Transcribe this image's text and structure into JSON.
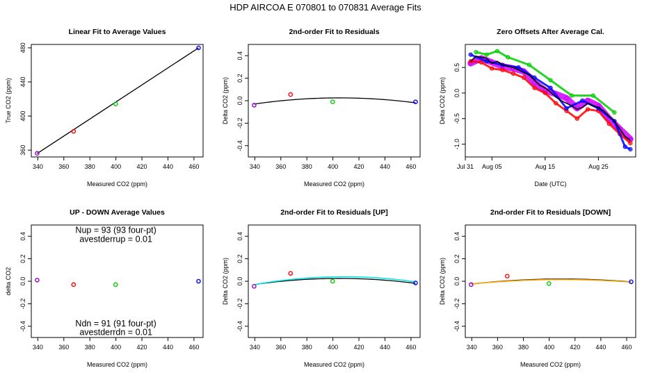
{
  "figure": {
    "title": "HDP    AIRCOA E    070801 to 070831    Average Fits"
  },
  "colors": {
    "red": "#ff0000",
    "green": "#00cc00",
    "blue": "#0000ff",
    "purple": "#9900cc",
    "magenta": "#cc00ff",
    "black": "#000000",
    "cyan": "#00e5e5",
    "orange": "#ffa500"
  },
  "chart_data": [
    {
      "id": "p1",
      "type": "scatter",
      "title": "Linear Fit to Average Values",
      "xlabel": "Measured CO2 (ppm)",
      "ylabel": "True CO2 (ppm)",
      "xlim": [
        335,
        467
      ],
      "ylim": [
        352,
        484
      ],
      "xticks": [
        340,
        360,
        380,
        400,
        420,
        440,
        460
      ],
      "yticks": [
        360,
        400,
        440,
        480
      ],
      "points": [
        {
          "x": 339.5,
          "y": 356.2,
          "color": "purple"
        },
        {
          "x": 367.5,
          "y": 382.0,
          "color": "red"
        },
        {
          "x": 399.8,
          "y": 414.2,
          "color": "green"
        },
        {
          "x": 463.5,
          "y": 480.0,
          "color": "blue"
        }
      ],
      "lines": [
        {
          "kind": "linear",
          "x0": 339.5,
          "y0": 356.0,
          "x1": 463.5,
          "y1": 480.0,
          "color": "black"
        }
      ]
    },
    {
      "id": "p2",
      "type": "scatter",
      "title": "2nd-order Fit to Residuals",
      "xlabel": "Measured CO2 (ppm)",
      "ylabel": "Delta CO2 (ppm)",
      "xlim": [
        335,
        467
      ],
      "ylim": [
        -0.5,
        0.5
      ],
      "xticks": [
        340,
        360,
        380,
        400,
        420,
        440,
        460
      ],
      "yticks": [
        -0.4,
        -0.2,
        0.0,
        0.2,
        0.4
      ],
      "ytick_labels": [
        "-0.4",
        "-0.2",
        "0.0",
        "0.2",
        "0.4"
      ],
      "points": [
        {
          "x": 339.5,
          "y": -0.04,
          "color": "purple"
        },
        {
          "x": 367.5,
          "y": 0.055,
          "color": "red"
        },
        {
          "x": 399.8,
          "y": -0.01,
          "color": "green"
        },
        {
          "x": 463.5,
          "y": -0.01,
          "color": "blue"
        }
      ],
      "lines": [
        {
          "kind": "quadratic",
          "vertex_x": 405,
          "vertex_y": 0.025,
          "x0": 339.5,
          "y0": -0.03,
          "x1": 463.5,
          "color": "black"
        }
      ]
    },
    {
      "id": "p3",
      "type": "scatter",
      "title": "Zero Offsets After Average Cal.",
      "xlabel": "Date (UTC)",
      "ylabel": "Delta CO2 (ppm)",
      "xlim": [
        "Jul 31",
        "Sep 01"
      ],
      "ylim": [
        -1.25,
        0.95
      ],
      "xticks": [
        "Jul 31",
        "Aug 05",
        "Aug 15",
        "Aug 25"
      ],
      "yticks": [
        -1.0,
        -0.5,
        0.0,
        0.5
      ],
      "ytick_labels": [
        "-1.0",
        "-0.5",
        "0.0",
        "0.5"
      ],
      "series": [
        {
          "name": "",
          "color": "magenta",
          "x": [
            "Aug 01",
            "Aug 03",
            "Aug 05",
            "Aug 07",
            "Aug 09",
            "Aug 11",
            "Aug 13",
            "Aug 15",
            "Aug 17",
            "Aug 19",
            "Aug 21",
            "Aug 23",
            "Aug 25",
            "Aug 27",
            "Aug 29",
            "Aug 31"
          ],
          "y": [
            0.58,
            0.68,
            0.6,
            0.52,
            0.48,
            0.42,
            0.2,
            0.05,
            -0.02,
            -0.1,
            -0.3,
            -0.15,
            -0.25,
            -0.5,
            -0.7,
            -0.9
          ]
        },
        {
          "name": "",
          "color": "red",
          "x": [
            "Aug 01",
            "Aug 03",
            "Aug 05",
            "Aug 07",
            "Aug 09",
            "Aug 11",
            "Aug 13",
            "Aug 15",
            "Aug 17",
            "Aug 19",
            "Aug 21",
            "Aug 23",
            "Aug 25",
            "Aug 27",
            "Aug 29",
            "Aug 31"
          ],
          "y": [
            0.62,
            0.6,
            0.48,
            0.45,
            0.38,
            0.3,
            0.1,
            0.0,
            -0.2,
            -0.35,
            -0.5,
            -0.32,
            -0.35,
            -0.6,
            -0.8,
            -0.98
          ]
        },
        {
          "name": "",
          "color": "green",
          "x": [
            "Aug 02",
            "Aug 04",
            "Aug 06",
            "Aug 08",
            "Aug 12",
            "Aug 16",
            "Aug 20",
            "Aug 24",
            "Aug 28"
          ],
          "y": [
            0.8,
            0.75,
            0.82,
            0.7,
            0.55,
            0.25,
            -0.05,
            -0.05,
            -0.38
          ]
        },
        {
          "name": "",
          "color": "blue",
          "x": [
            "Aug 01",
            "Aug 04",
            "Aug 07",
            "Aug 10",
            "Aug 13",
            "Aug 16",
            "Aug 19",
            "Aug 22",
            "Aug 25",
            "Aug 28",
            "Aug 30",
            "Aug 31"
          ],
          "y": [
            0.75,
            0.62,
            0.55,
            0.5,
            0.3,
            0.1,
            -0.3,
            -0.15,
            -0.3,
            -0.55,
            -1.05,
            -1.1
          ]
        }
      ],
      "line": {
        "color": "black",
        "x": [
          "Aug 01",
          "Aug 02",
          "Aug 03",
          "Aug 04",
          "Aug 05",
          "Aug 06",
          "Aug 07",
          "Aug 08",
          "Aug 09",
          "Aug 10",
          "Aug 11",
          "Aug 12",
          "Aug 13",
          "Aug 14",
          "Aug 15",
          "Aug 16",
          "Aug 17",
          "Aug 18",
          "Aug 19",
          "Aug 20",
          "Aug 21",
          "Aug 22",
          "Aug 23",
          "Aug 24",
          "Aug 25",
          "Aug 26",
          "Aug 27",
          "Aug 28",
          "Aug 29",
          "Aug 30",
          "Aug 31"
        ],
        "y": [
          0.62,
          0.72,
          0.7,
          0.68,
          0.58,
          0.62,
          0.55,
          0.52,
          0.5,
          0.45,
          0.4,
          0.35,
          0.25,
          0.15,
          0.1,
          0.02,
          -0.08,
          -0.15,
          -0.2,
          -0.25,
          -0.32,
          -0.28,
          -0.2,
          -0.25,
          -0.28,
          -0.35,
          -0.45,
          -0.55,
          -0.7,
          -0.85,
          -0.92
        ]
      }
    },
    {
      "id": "p4",
      "type": "scatter",
      "title": "UP - DOWN Average Values",
      "xlabel": "Measured CO2 (ppm)",
      "ylabel": "delta CO2",
      "xlim": [
        335,
        467
      ],
      "ylim": [
        -0.5,
        0.5
      ],
      "xticks": [
        340,
        360,
        380,
        400,
        420,
        440,
        460
      ],
      "yticks": [
        -0.4,
        -0.2,
        0.0,
        0.2,
        0.4
      ],
      "ytick_labels": [
        "-0.4",
        "-0.2",
        "0.0",
        "0.2",
        "0.4"
      ],
      "points": [
        {
          "x": 339.5,
          "y": 0.01,
          "color": "purple"
        },
        {
          "x": 367.5,
          "y": -0.03,
          "color": "red"
        },
        {
          "x": 399.8,
          "y": -0.03,
          "color": "green"
        },
        {
          "x": 463.5,
          "y": 0.0,
          "color": "blue"
        }
      ],
      "annotations": [
        {
          "text": "Nup = 93 (93 four-pt)",
          "x": 400,
          "y": 0.455
        },
        {
          "text": "avestderrup =  0.01",
          "x": 400,
          "y": 0.375
        },
        {
          "text": "Ndn = 91 (91 four-pt)",
          "x": 400,
          "y": -0.375
        },
        {
          "text": "avestderrdn =  0.01",
          "x": 400,
          "y": -0.455
        }
      ]
    },
    {
      "id": "p5",
      "type": "scatter",
      "title": "2nd-order Fit to Residuals [UP]",
      "xlabel": "Measured CO2 (ppm)",
      "ylabel": "Delta CO2 (ppm)",
      "xlim": [
        335,
        467
      ],
      "ylim": [
        -0.5,
        0.5
      ],
      "xticks": [
        340,
        360,
        380,
        400,
        420,
        440,
        460
      ],
      "yticks": [
        -0.4,
        -0.2,
        0.0,
        0.2,
        0.4
      ],
      "ytick_labels": [
        "-0.4",
        "-0.2",
        "0.0",
        "0.2",
        "0.4"
      ],
      "points": [
        {
          "x": 339.5,
          "y": -0.045,
          "color": "purple"
        },
        {
          "x": 367.5,
          "y": 0.07,
          "color": "red"
        },
        {
          "x": 399.8,
          "y": 0.0,
          "color": "green"
        },
        {
          "x": 463.5,
          "y": -0.015,
          "color": "blue"
        }
      ],
      "lines": [
        {
          "kind": "quadratic",
          "vertex_x": 405,
          "vertex_y": 0.025,
          "x0": 339.5,
          "y0": -0.03,
          "x1": 463.5,
          "color": "black"
        },
        {
          "kind": "quadratic",
          "vertex_x": 408,
          "vertex_y": 0.04,
          "x0": 339.5,
          "y0": -0.03,
          "x1": 463.5,
          "color": "cyan"
        }
      ]
    },
    {
      "id": "p6",
      "type": "scatter",
      "title": "2nd-order Fit to Residuals [DOWN]",
      "xlabel": "Measured CO2 (ppm)",
      "ylabel": "Delta CO2 (ppm)",
      "xlim": [
        335,
        467
      ],
      "ylim": [
        -0.5,
        0.5
      ],
      "xticks": [
        340,
        360,
        380,
        400,
        420,
        440,
        460
      ],
      "yticks": [
        -0.4,
        -0.2,
        0.0,
        0.2,
        0.4
      ],
      "ytick_labels": [
        "-0.4",
        "-0.2",
        "0.0",
        "0.2",
        "0.4"
      ],
      "points": [
        {
          "x": 339.5,
          "y": -0.03,
          "color": "purple"
        },
        {
          "x": 367.5,
          "y": 0.045,
          "color": "red"
        },
        {
          "x": 399.8,
          "y": -0.02,
          "color": "green"
        },
        {
          "x": 463.5,
          "y": -0.005,
          "color": "blue"
        }
      ],
      "lines": [
        {
          "kind": "quadratic",
          "vertex_x": 410,
          "vertex_y": 0.02,
          "x0": 339.5,
          "y0": -0.025,
          "x1": 463.5,
          "color": "black"
        },
        {
          "kind": "quadratic",
          "vertex_x": 410,
          "vertex_y": 0.015,
          "x0": 339.5,
          "y0": -0.025,
          "x1": 463.5,
          "color": "orange"
        }
      ]
    }
  ]
}
